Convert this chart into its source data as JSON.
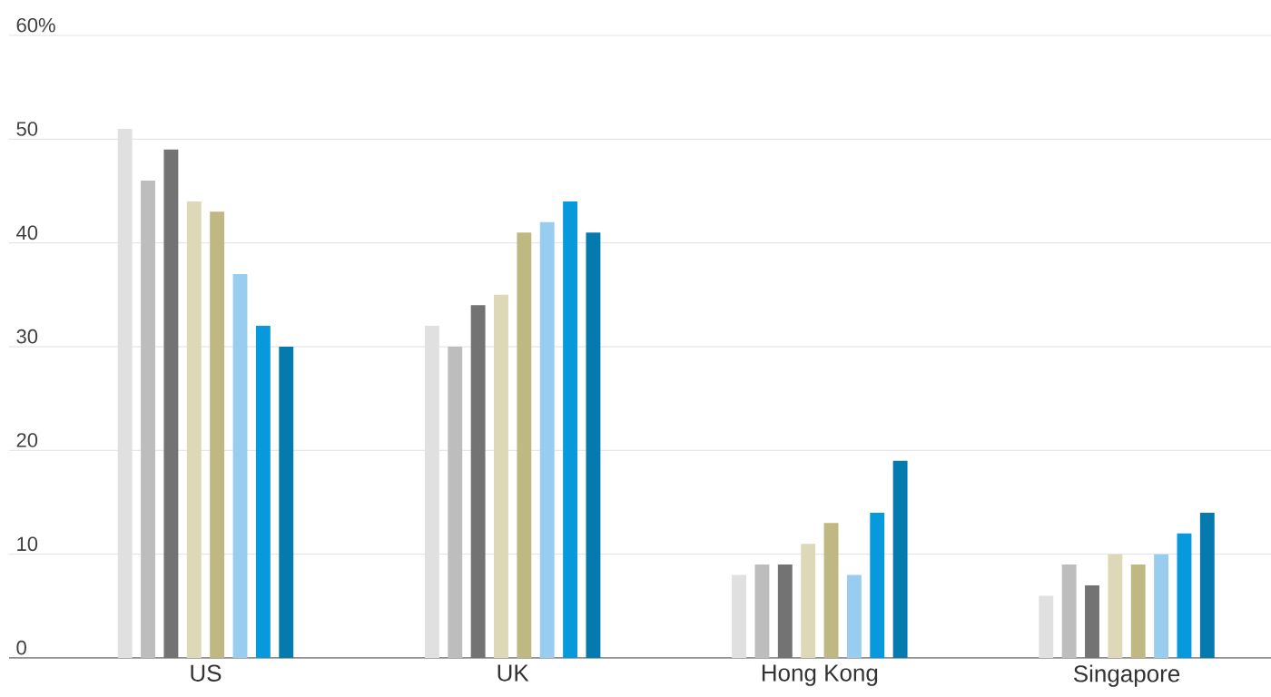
{
  "chart_data": {
    "type": "bar",
    "categories": [
      "US",
      "UK",
      "Hong Kong",
      "Singapore"
    ],
    "series": [
      {
        "color": "#e0e0e0",
        "values": [
          51,
          32,
          8,
          6
        ]
      },
      {
        "color": "#bdbdbd",
        "values": [
          46,
          30,
          9,
          9
        ]
      },
      {
        "color": "#737373",
        "values": [
          49,
          34,
          9,
          7
        ]
      },
      {
        "color": "#ddd8b8",
        "values": [
          44,
          35,
          11,
          10
        ]
      },
      {
        "color": "#c0b882",
        "values": [
          43,
          41,
          13,
          9
        ]
      },
      {
        "color": "#99cdef",
        "values": [
          37,
          42,
          8,
          10
        ]
      },
      {
        "color": "#0899dc",
        "values": [
          32,
          44,
          14,
          12
        ]
      },
      {
        "color": "#047aaf",
        "values": [
          30,
          41,
          19,
          14
        ]
      }
    ],
    "ylim": [
      0,
      60
    ],
    "yticks": [
      0,
      10,
      20,
      30,
      40,
      50,
      {
        "value": 60,
        "label": "60%"
      }
    ],
    "grid": "y"
  }
}
